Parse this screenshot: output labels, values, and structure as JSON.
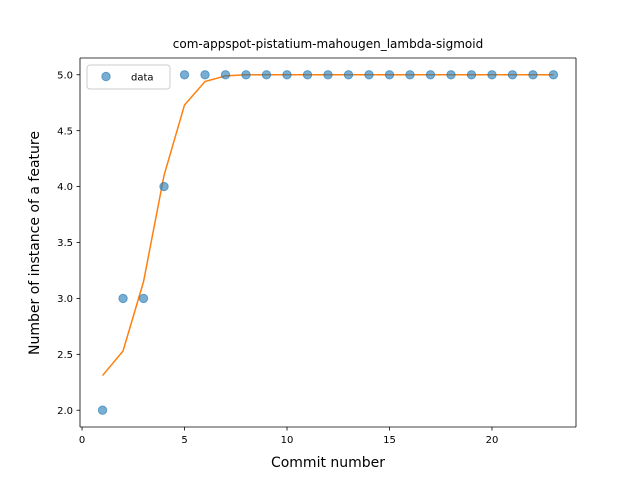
{
  "chart_data": {
    "type": "scatter",
    "title": "com-appspot-pistatium-mahougen_lambda-sigmoid",
    "xlabel": "Commit number",
    "ylabel": "Number of instance of a feature",
    "xlim": [
      -0.1,
      24.1
    ],
    "ylim": [
      1.85,
      5.15
    ],
    "xticks": [
      0,
      5,
      10,
      15,
      20
    ],
    "xtick_labels": [
      "0",
      "5",
      "10",
      "15",
      "20"
    ],
    "yticks": [
      2.0,
      2.5,
      3.0,
      3.5,
      4.0,
      4.5,
      5.0
    ],
    "ytick_labels": [
      "2.0",
      "2.5",
      "3.0",
      "3.5",
      "4.0",
      "4.5",
      "5.0"
    ],
    "grid": false,
    "legend": {
      "placement": "upper-left",
      "entries": [
        "data"
      ]
    },
    "series": [
      {
        "name": "data",
        "kind": "scatter",
        "color": "#1f77b4",
        "x": [
          1,
          2,
          3,
          4,
          5,
          6,
          7,
          8,
          9,
          10,
          11,
          12,
          13,
          14,
          15,
          16,
          17,
          18,
          19,
          20,
          21,
          22,
          23
        ],
        "y": [
          2,
          3,
          3,
          4,
          5,
          5,
          5,
          5,
          5,
          5,
          5,
          5,
          5,
          5,
          5,
          5,
          5,
          5,
          5,
          5,
          5,
          5,
          5
        ]
      },
      {
        "kind": "line",
        "color": "#ff7f0e",
        "x": [
          1,
          2,
          3,
          4,
          5,
          6,
          7,
          8,
          9,
          10,
          11,
          12,
          13,
          14,
          15,
          16,
          17,
          18,
          19,
          20,
          21,
          22,
          23
        ],
        "y": [
          2.31,
          2.53,
          3.15,
          4.1,
          4.73,
          4.94,
          4.99,
          5.0,
          5.0,
          5.0,
          5.0,
          5.0,
          5.0,
          5.0,
          5.0,
          5.0,
          5.0,
          5.0,
          5.0,
          5.0,
          5.0,
          5.0,
          5.0
        ]
      }
    ]
  }
}
